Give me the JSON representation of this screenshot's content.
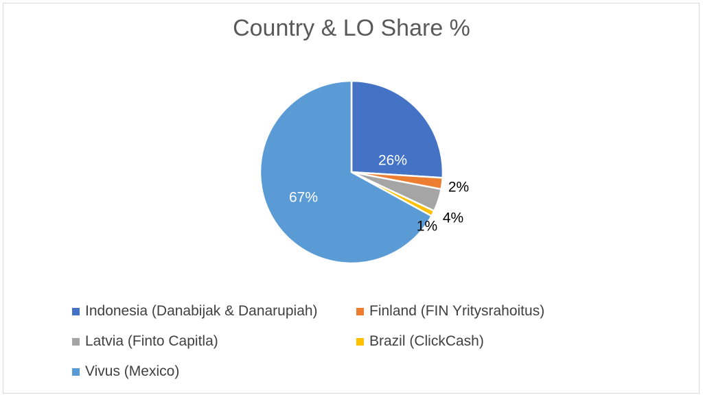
{
  "chart_data": {
    "type": "pie",
    "title": "Country & LO Share %",
    "slices": [
      {
        "label": "Indonesia (Danabijak & Danarupiah)",
        "value": 26,
        "display": "26%",
        "color": "#4472c4",
        "label_color": "#ffffff"
      },
      {
        "label": "Finland (FIN Yritysrahoitus)",
        "value": 2,
        "display": "2%",
        "color": "#ed7d31",
        "label_color": "#000000"
      },
      {
        "label": "Latvia (Finto Capitla)",
        "value": 4,
        "display": "4%",
        "color": "#a5a5a5",
        "label_color": "#000000"
      },
      {
        "label": "Brazil (ClickCash)",
        "value": 1,
        "display": "1%",
        "color": "#ffc000",
        "label_color": "#000000"
      },
      {
        "label": "Vivus (Mexico)",
        "value": 67,
        "display": "67%",
        "color": "#5b9bd5",
        "label_color": "#ffffff"
      }
    ],
    "start_angle": "12 o'clock",
    "direction": "clockwise",
    "legend_position": "bottom"
  }
}
